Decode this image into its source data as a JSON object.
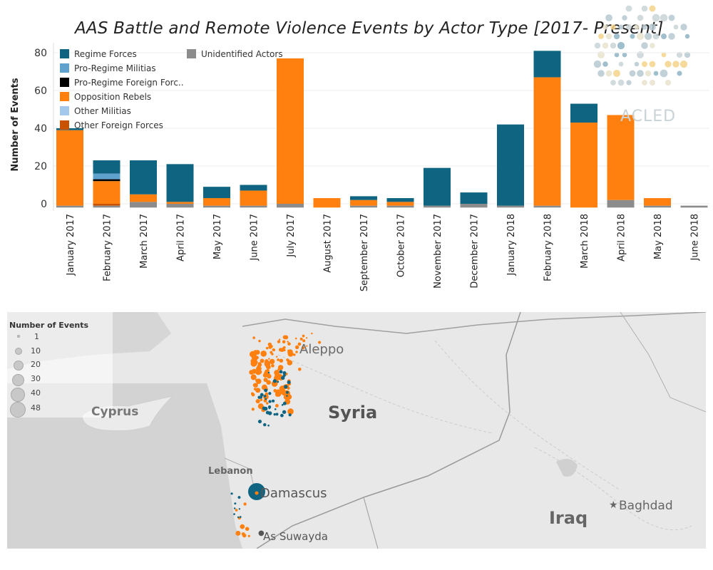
{
  "chart_data": {
    "type": "bar",
    "stacked": true,
    "title": "AAS  Battle and Remote Violence Events by Actor Type [2017- Present]",
    "ylabel": "Number of Events",
    "ylim": [
      -3,
      85
    ],
    "yticks": [
      0,
      20,
      40,
      60,
      80
    ],
    "categories": [
      "January 2017",
      "February 2017",
      "March 2017",
      "April 2017",
      "May 2017",
      "June 2017",
      "July 2017",
      "August 2017",
      "September 2017",
      "October 2017",
      "November 2017",
      "December 2017",
      "January 2018",
      "February 2018",
      "March 2018",
      "April 2018",
      "May 2018",
      "June 2018"
    ],
    "series": [
      {
        "name": "Unidentified Actors",
        "color": "#8c8c8c",
        "values": [
          1,
          1,
          3,
          2,
          1,
          1,
          2,
          0,
          1,
          1,
          1,
          2,
          1,
          1,
          0,
          4,
          1,
          1
        ]
      },
      {
        "name": "Other Foreign Forces",
        "color": "#c85200",
        "values": [
          0,
          1,
          0,
          0,
          0,
          0,
          0,
          0,
          0,
          0,
          0,
          0,
          0,
          0,
          0,
          0,
          0,
          0
        ]
      },
      {
        "name": "Opposition Rebels",
        "color": "#ff800e",
        "values": [
          40,
          12,
          4,
          1,
          4,
          8,
          77,
          5,
          3,
          2,
          0,
          0,
          0,
          68,
          45,
          45,
          4,
          0
        ]
      },
      {
        "name": "Pro-Regime Foreign Forces",
        "color": "#000000",
        "values": [
          0,
          1,
          0,
          0,
          0,
          0,
          0,
          0,
          0,
          0,
          0,
          0,
          0,
          0,
          0,
          0,
          0,
          0
        ]
      },
      {
        "name": "Pro-Regime Militias",
        "color": "#5fa2ce",
        "values": [
          0,
          3,
          0,
          0,
          0,
          0,
          0,
          0,
          0,
          0,
          0,
          0,
          0,
          0,
          0,
          0,
          0,
          0
        ]
      },
      {
        "name": "Regime Forces",
        "color": "#0f6581",
        "values": [
          1,
          7,
          18,
          20,
          6,
          3,
          0,
          0,
          2,
          2,
          20,
          6,
          43,
          14,
          10,
          0,
          0,
          0
        ]
      }
    ],
    "legend": {
      "placement": "top-left",
      "col1": [
        {
          "name": "Regime Forces",
          "color": "#0f6581"
        },
        {
          "name": "Pro-Regime Militias",
          "color": "#5fa2ce"
        },
        {
          "name": "Pro-Regime Foreign Forc..",
          "color": "#000000"
        },
        {
          "name": "Opposition Rebels",
          "color": "#ff800e"
        },
        {
          "name": "Other Militias",
          "color": "#a3c8ec"
        },
        {
          "name": "Other Foreign Forces",
          "color": "#c85200"
        }
      ],
      "col2": [
        {
          "name": "Unidentified Actors",
          "color": "#8c8c8c"
        }
      ]
    }
  },
  "logo": {
    "text": "ACLED"
  },
  "map": {
    "legend_title": "Number of Events",
    "legend_sizes": [
      "1",
      "10",
      "20",
      "30",
      "40",
      "48"
    ],
    "labels": {
      "aleppo": "Aleppo",
      "syria": "Syria",
      "cyprus": "Cyprus",
      "lebanon": "Lebanon",
      "damascus": "Damascus",
      "baghdad": "Baghdad",
      "iraq": "Iraq",
      "as_suwayda": "As Suwayda"
    },
    "colors": {
      "land": "#e8e8e8",
      "sea": "#d4d4d4",
      "regime": "#0f6581",
      "rebels": "#ff800e"
    }
  }
}
